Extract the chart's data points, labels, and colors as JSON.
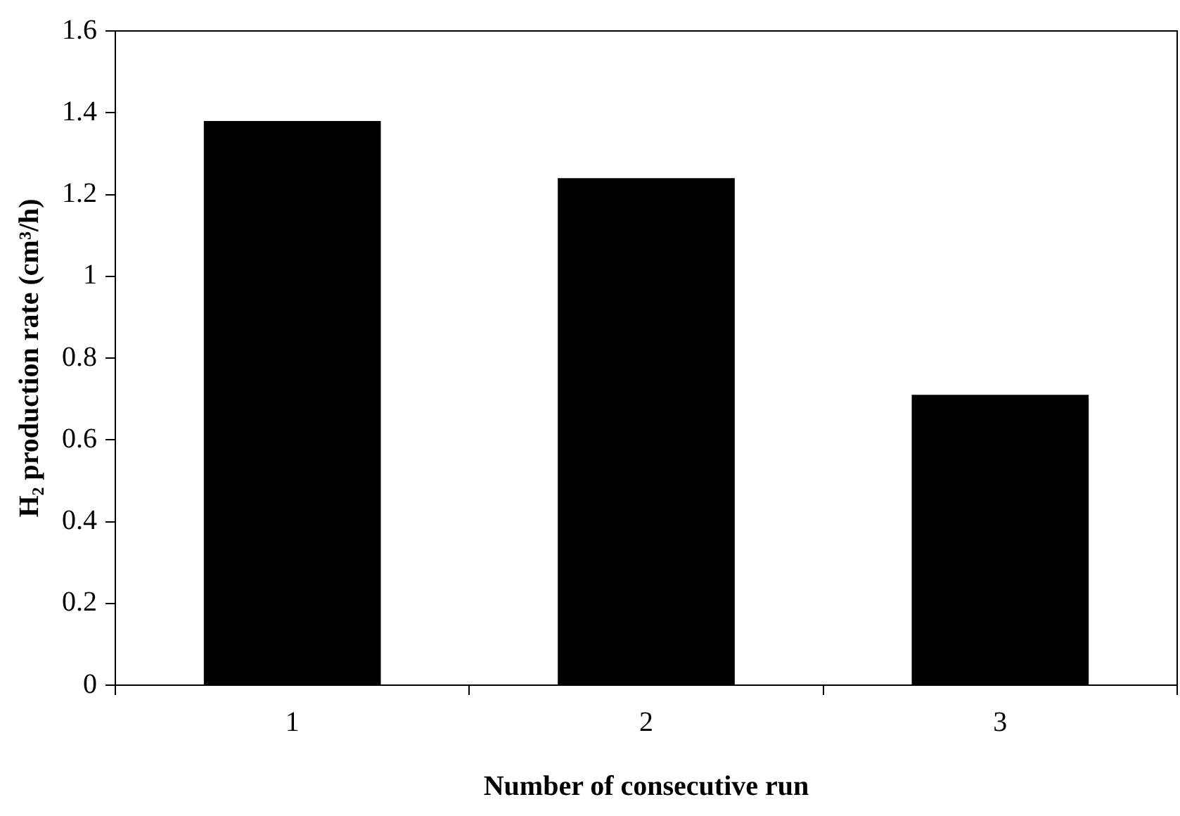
{
  "chart_data": {
    "type": "bar",
    "xlabel": "Number of consecutive run",
    "ylabel": "H₂ production rate (cm³/h)",
    "categories": [
      "1",
      "2",
      "3"
    ],
    "values": [
      1.38,
      1.24,
      0.71
    ],
    "color": "#000000",
    "ylim": [
      0,
      1.6
    ],
    "yticks": [
      0,
      0.2,
      0.4,
      0.6,
      0.8,
      1,
      1.2,
      1.4,
      1.6
    ],
    "grid": false,
    "legend": false
  }
}
